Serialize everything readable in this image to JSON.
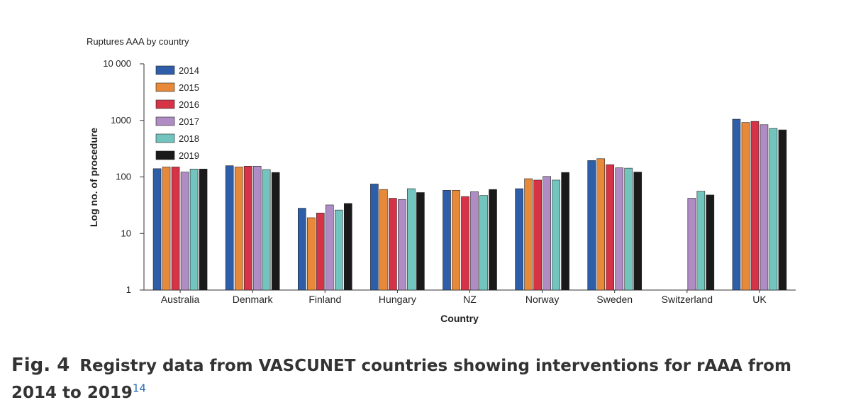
{
  "chart_data": {
    "type": "bar",
    "title": "Ruptures AAA by country",
    "xlabel": "Country",
    "ylabel": "Log no. of procedure",
    "yscale": "log",
    "ylim": [
      1,
      10000
    ],
    "yticks": [
      {
        "value": 1,
        "label": "1"
      },
      {
        "value": 10,
        "label": "10"
      },
      {
        "value": 100,
        "label": "100"
      },
      {
        "value": 1000,
        "label": "1000"
      },
      {
        "value": 10000,
        "label": "10 000"
      }
    ],
    "grid": false,
    "legend_position": "top-left",
    "categories": [
      "Australia",
      "Denmark",
      "Finland",
      "Hungary",
      "NZ",
      "Norway",
      "Sweden",
      "Switzerland",
      "UK"
    ],
    "series": [
      {
        "name": "2014",
        "color": "#2f5ea8",
        "values": [
          140,
          158,
          28,
          75,
          58,
          62,
          195,
          null,
          1050
        ]
      },
      {
        "name": "2015",
        "color": "#e8893a",
        "values": [
          150,
          150,
          19,
          60,
          58,
          93,
          210,
          null,
          920
        ]
      },
      {
        "name": "2016",
        "color": "#d63346",
        "values": [
          150,
          155,
          23,
          42,
          45,
          88,
          165,
          null,
          960
        ]
      },
      {
        "name": "2017",
        "color": "#b08cc4",
        "values": [
          122,
          155,
          32,
          40,
          55,
          102,
          145,
          42,
          840
        ]
      },
      {
        "name": "2018",
        "color": "#72c4bf",
        "values": [
          138,
          135,
          26,
          62,
          47,
          88,
          143,
          56,
          720
        ]
      },
      {
        "name": "2019",
        "color": "#1a1a1a",
        "values": [
          138,
          120,
          34,
          53,
          60,
          120,
          122,
          48,
          680
        ]
      }
    ]
  },
  "caption": {
    "fig_label": "Fig. 4",
    "text": "Registry data from VASCUNET countries showing interventions for rAAA from 2014 to 2019",
    "ref": "14"
  }
}
